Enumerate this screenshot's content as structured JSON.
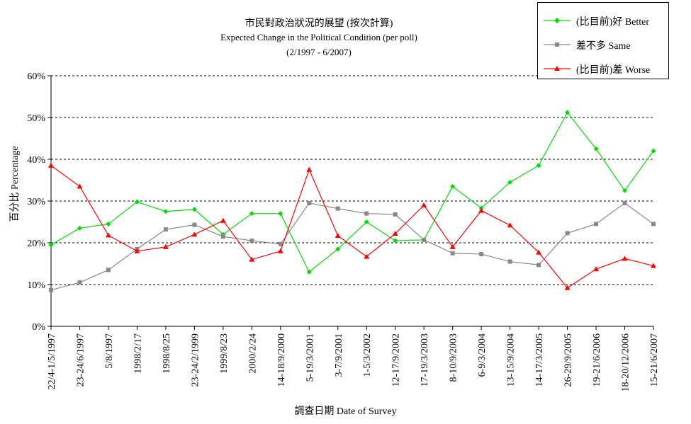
{
  "chart_data": {
    "type": "line",
    "title": "市民對政治狀況的展望 (按次計算)",
    "subtitle": "Expected Change in the Political Condition  (per poll)",
    "period": "(2/1997 - 6/2007)",
    "xlabel": "調查日期 Date of Survey",
    "ylabel": "百分比 Percentage",
    "ylim": [
      0,
      60
    ],
    "yticks": [
      "0%",
      "10%",
      "20%",
      "30%",
      "40%",
      "50%",
      "60%"
    ],
    "grid": "horizontal dashed",
    "legend_position": "top-right",
    "categories": [
      "22/4-1/5/1997",
      "23-24/6/1997",
      "5/8/1997",
      "1998/2/17",
      "1998/8/25",
      "23-24/2/1999",
      "1999/8/23",
      "2000/2/24",
      "14-18/9/2000",
      "5-19/3/2001",
      "3-7/9/2001",
      "1-5/3/2002",
      "12-17/9/2002",
      "17-19/3/2003",
      "8-10/9/2003",
      "6-9/3/2004",
      "13-15/9/2004",
      "14-17/3/2005",
      "26-29/9/2005",
      "19-21/6/2006",
      "18-20/12/2006",
      "15-21/6/2007"
    ],
    "series": [
      {
        "name": "(比目前)好 Better",
        "color": "#00dd00",
        "marker": "diamond",
        "values": [
          19.5,
          23.5,
          24.5,
          29.8,
          27.5,
          28,
          22,
          27,
          27,
          13,
          18.5,
          25,
          20.5,
          20.7,
          33.5,
          28.3,
          34.5,
          38.5,
          51.2,
          42.5,
          32.5,
          42
        ]
      },
      {
        "name": "差不多 Same",
        "color": "#888888",
        "marker": "square",
        "values": [
          8.7,
          10.5,
          13.5,
          18.5,
          23.2,
          24.3,
          21.5,
          20.5,
          19.7,
          29.5,
          28.2,
          27,
          26.8,
          20.7,
          17.5,
          17.3,
          15.5,
          14.7,
          22.3,
          24.5,
          29.5,
          24.5
        ]
      },
      {
        "name": "(比目前)差 Worse",
        "color": "#ff0000",
        "marker": "triangle",
        "values": [
          38.5,
          33.5,
          21.8,
          18,
          19,
          22,
          25.3,
          16,
          18,
          37.5,
          21.7,
          16.7,
          22.2,
          29,
          19,
          27.7,
          24.2,
          17.7,
          9.2,
          13.7,
          16.2,
          14.5
        ]
      }
    ]
  }
}
